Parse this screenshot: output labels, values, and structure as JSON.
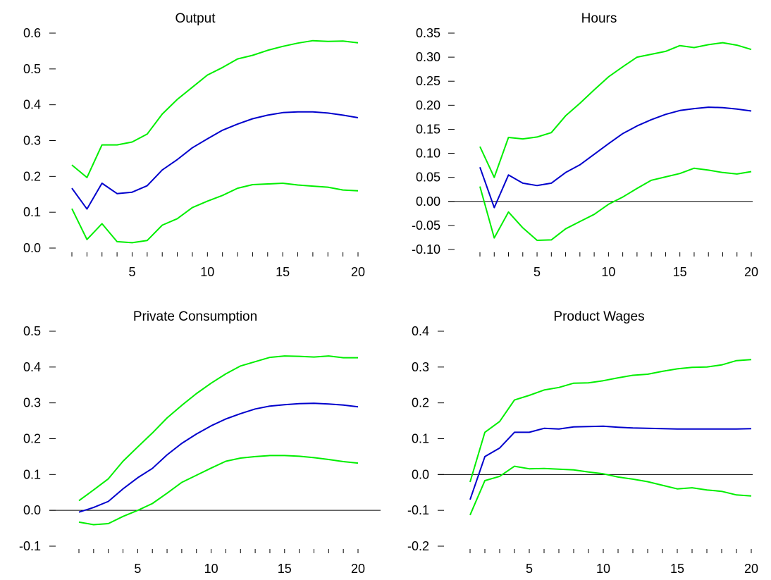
{
  "chart_data": [
    {
      "type": "line",
      "title": "Output",
      "x": [
        1,
        2,
        3,
        4,
        5,
        6,
        7,
        8,
        9,
        10,
        11,
        12,
        13,
        14,
        15,
        16,
        17,
        18,
        19,
        20
      ],
      "xticks": [
        5,
        10,
        15,
        20
      ],
      "xlim": [
        1,
        20
      ],
      "ylim": [
        0,
        0.6
      ],
      "yticks": [
        "0.0",
        "0.1",
        "0.2",
        "0.3",
        "0.4",
        "0.5",
        "0.6"
      ],
      "zero_line": false,
      "series": [
        {
          "role": "upper",
          "color": "#00ee00",
          "values": [
            0.232,
            0.197,
            0.288,
            0.288,
            0.296,
            0.318,
            0.374,
            0.415,
            0.449,
            0.483,
            0.504,
            0.528,
            0.538,
            0.552,
            0.563,
            0.572,
            0.579,
            0.577,
            0.578,
            0.573
          ]
        },
        {
          "role": "median",
          "color": "#0000cc",
          "values": [
            0.167,
            0.109,
            0.181,
            0.152,
            0.156,
            0.174,
            0.218,
            0.247,
            0.28,
            0.305,
            0.329,
            0.346,
            0.361,
            0.371,
            0.378,
            0.38,
            0.38,
            0.377,
            0.371,
            0.364
          ]
        },
        {
          "role": "lower",
          "color": "#00ee00",
          "values": [
            0.11,
            0.024,
            0.068,
            0.018,
            0.015,
            0.021,
            0.064,
            0.082,
            0.113,
            0.131,
            0.147,
            0.167,
            0.177,
            0.179,
            0.181,
            0.176,
            0.173,
            0.17,
            0.162,
            0.16
          ]
        }
      ]
    },
    {
      "type": "line",
      "title": "Hours",
      "x": [
        1,
        2,
        3,
        4,
        5,
        6,
        7,
        8,
        9,
        10,
        11,
        12,
        13,
        14,
        15,
        16,
        17,
        18,
        19,
        20
      ],
      "xticks": [
        5,
        10,
        15,
        20
      ],
      "xlim": [
        1,
        20
      ],
      "ylim": [
        -0.1,
        0.35
      ],
      "yticks": [
        "-0.10",
        "-0.05",
        "0.00",
        "0.05",
        "0.10",
        "0.15",
        "0.20",
        "0.25",
        "0.30",
        "0.35"
      ],
      "zero_line": true,
      "series": [
        {
          "role": "upper",
          "color": "#00ee00",
          "values": [
            0.114,
            0.05,
            0.133,
            0.13,
            0.134,
            0.143,
            0.178,
            0.204,
            0.232,
            0.259,
            0.28,
            0.3,
            0.306,
            0.312,
            0.324,
            0.32,
            0.326,
            0.33,
            0.325,
            0.316
          ]
        },
        {
          "role": "median",
          "color": "#0000cc",
          "values": [
            0.071,
            -0.013,
            0.055,
            0.038,
            0.033,
            0.038,
            0.06,
            0.076,
            0.098,
            0.12,
            0.141,
            0.157,
            0.17,
            0.181,
            0.189,
            0.193,
            0.196,
            0.195,
            0.192,
            0.188
          ]
        },
        {
          "role": "lower",
          "color": "#00ee00",
          "values": [
            0.031,
            -0.076,
            -0.022,
            -0.055,
            -0.081,
            -0.08,
            -0.057,
            -0.042,
            -0.027,
            -0.006,
            0.009,
            0.027,
            0.044,
            0.051,
            0.058,
            0.069,
            0.065,
            0.06,
            0.057,
            0.062
          ]
        }
      ]
    },
    {
      "type": "line",
      "title": "Private Consumption",
      "x": [
        1,
        2,
        3,
        4,
        5,
        6,
        7,
        8,
        9,
        10,
        11,
        12,
        13,
        14,
        15,
        16,
        17,
        18,
        19,
        20
      ],
      "xticks": [
        5,
        10,
        15,
        20
      ],
      "xlim": [
        1,
        20
      ],
      "ylim": [
        -0.1,
        0.5
      ],
      "yticks": [
        "-0.1",
        "0.0",
        "0.1",
        "0.2",
        "0.3",
        "0.4",
        "0.5"
      ],
      "zero_line": true,
      "series": [
        {
          "role": "upper",
          "color": "#00ee00",
          "values": [
            0.027,
            0.057,
            0.088,
            0.137,
            0.177,
            0.216,
            0.258,
            0.293,
            0.326,
            0.355,
            0.381,
            0.403,
            0.415,
            0.427,
            0.431,
            0.43,
            0.428,
            0.431,
            0.426,
            0.426
          ]
        },
        {
          "role": "median",
          "color": "#0000cc",
          "values": [
            -0.005,
            0.008,
            0.025,
            0.06,
            0.091,
            0.117,
            0.155,
            0.187,
            0.213,
            0.236,
            0.255,
            0.27,
            0.283,
            0.291,
            0.295,
            0.298,
            0.299,
            0.297,
            0.294,
            0.289
          ]
        },
        {
          "role": "lower",
          "color": "#00ee00",
          "values": [
            -0.033,
            -0.04,
            -0.037,
            -0.017,
            0.0,
            0.019,
            0.048,
            0.078,
            0.098,
            0.118,
            0.137,
            0.146,
            0.15,
            0.153,
            0.153,
            0.151,
            0.147,
            0.142,
            0.136,
            0.132
          ]
        }
      ]
    },
    {
      "type": "line",
      "title": "Product Wages",
      "x": [
        1,
        2,
        3,
        4,
        5,
        6,
        7,
        8,
        9,
        10,
        11,
        12,
        13,
        14,
        15,
        16,
        17,
        18,
        19,
        20
      ],
      "xticks": [
        5,
        10,
        15,
        20
      ],
      "xlim": [
        1,
        20
      ],
      "ylim": [
        -0.2,
        0.4
      ],
      "yticks": [
        "-0.2",
        "-0.1",
        "0.0",
        "0.1",
        "0.2",
        "0.3",
        "0.4"
      ],
      "zero_line": true,
      "series": [
        {
          "role": "upper",
          "color": "#00ee00",
          "values": [
            -0.021,
            0.118,
            0.148,
            0.208,
            0.221,
            0.236,
            0.243,
            0.255,
            0.256,
            0.262,
            0.27,
            0.277,
            0.28,
            0.288,
            0.295,
            0.299,
            0.3,
            0.306,
            0.318,
            0.321
          ]
        },
        {
          "role": "median",
          "color": "#0000cc",
          "values": [
            -0.07,
            0.05,
            0.074,
            0.118,
            0.118,
            0.129,
            0.127,
            0.133,
            0.134,
            0.135,
            0.132,
            0.13,
            0.129,
            0.128,
            0.127,
            0.127,
            0.127,
            0.127,
            0.127,
            0.128
          ]
        },
        {
          "role": "lower",
          "color": "#00ee00",
          "values": [
            -0.113,
            -0.017,
            -0.005,
            0.023,
            0.016,
            0.017,
            0.015,
            0.013,
            0.007,
            0.002,
            -0.007,
            -0.013,
            -0.02,
            -0.03,
            -0.04,
            -0.037,
            -0.043,
            -0.047,
            -0.057,
            -0.06
          ]
        }
      ]
    }
  ]
}
